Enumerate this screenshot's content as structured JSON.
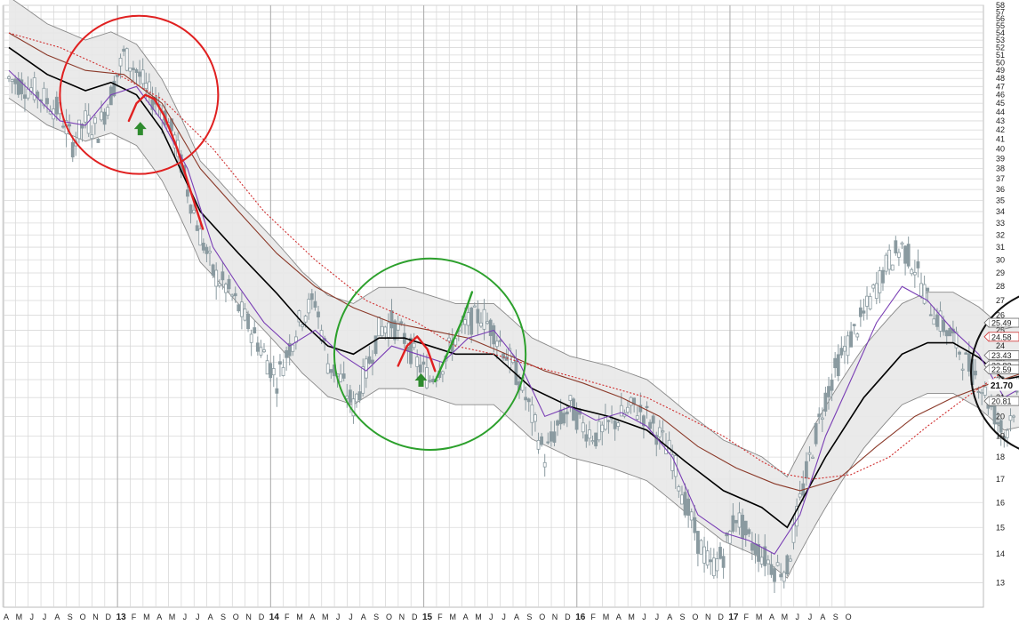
{
  "chart_data": {
    "type": "candlestick",
    "title": "",
    "xlabel": "",
    "ylabel": "",
    "ylim": [
      12.2,
      58
    ],
    "yscale": "log",
    "grid": true,
    "y_ticks": [
      13,
      14,
      15,
      16,
      17,
      18,
      19,
      20,
      21,
      22,
      23,
      24,
      25,
      26,
      27,
      28,
      29,
      30,
      31,
      32,
      33,
      34,
      35,
      36,
      37,
      38,
      39,
      40,
      41,
      42,
      43,
      44,
      45,
      46,
      47,
      48,
      49,
      50,
      51,
      52,
      53,
      54,
      55,
      56,
      57,
      58
    ],
    "x_ticks": [
      {
        "label": "A"
      },
      {
        "label": "M"
      },
      {
        "label": "J"
      },
      {
        "label": "J"
      },
      {
        "label": "A"
      },
      {
        "label": "S"
      },
      {
        "label": "O"
      },
      {
        "label": "N"
      },
      {
        "label": "D"
      },
      {
        "label": "13",
        "year": true
      },
      {
        "label": "F"
      },
      {
        "label": "M"
      },
      {
        "label": "A"
      },
      {
        "label": "M"
      },
      {
        "label": "J"
      },
      {
        "label": "J"
      },
      {
        "label": "A"
      },
      {
        "label": "S"
      },
      {
        "label": "O"
      },
      {
        "label": "N"
      },
      {
        "label": "D"
      },
      {
        "label": "14",
        "year": true
      },
      {
        "label": "F"
      },
      {
        "label": "M"
      },
      {
        "label": "A"
      },
      {
        "label": "M"
      },
      {
        "label": "J"
      },
      {
        "label": "J"
      },
      {
        "label": "A"
      },
      {
        "label": "S"
      },
      {
        "label": "O"
      },
      {
        "label": "N"
      },
      {
        "label": "D"
      },
      {
        "label": "15",
        "year": true
      },
      {
        "label": "F"
      },
      {
        "label": "M"
      },
      {
        "label": "A"
      },
      {
        "label": "M"
      },
      {
        "label": "J"
      },
      {
        "label": "J"
      },
      {
        "label": "A"
      },
      {
        "label": "S"
      },
      {
        "label": "O"
      },
      {
        "label": "N"
      },
      {
        "label": "D"
      },
      {
        "label": "16",
        "year": true
      },
      {
        "label": "F"
      },
      {
        "label": "M"
      },
      {
        "label": "A"
      },
      {
        "label": "M"
      },
      {
        "label": "J"
      },
      {
        "label": "J"
      },
      {
        "label": "A"
      },
      {
        "label": "S"
      },
      {
        "label": "O"
      },
      {
        "label": "N"
      },
      {
        "label": "D"
      },
      {
        "label": "17",
        "year": true
      },
      {
        "label": "F"
      },
      {
        "label": "M"
      },
      {
        "label": "A"
      },
      {
        "label": "M"
      },
      {
        "label": "J"
      },
      {
        "label": "J"
      },
      {
        "label": "A"
      },
      {
        "label": "S"
      },
      {
        "label": "O"
      }
    ],
    "price_path": [
      [
        0,
        48
      ],
      [
        2,
        46.5
      ],
      [
        4,
        44
      ],
      [
        5,
        40.5
      ],
      [
        6,
        43
      ],
      [
        7,
        42
      ],
      [
        8,
        46
      ],
      [
        9,
        51
      ],
      [
        10,
        49
      ],
      [
        11,
        46
      ],
      [
        12,
        44.5
      ],
      [
        13,
        41
      ],
      [
        14,
        36
      ],
      [
        15,
        32
      ],
      [
        16,
        29
      ],
      [
        17,
        28
      ],
      [
        18,
        26.5
      ],
      [
        19,
        25
      ],
      [
        20,
        23.5
      ],
      [
        21,
        22
      ],
      [
        22,
        24
      ],
      [
        23,
        26
      ],
      [
        24,
        27
      ],
      [
        25,
        23
      ],
      [
        26,
        22
      ],
      [
        27,
        20.5
      ],
      [
        28,
        22.5
      ],
      [
        29,
        25
      ],
      [
        30,
        25.5
      ],
      [
        31,
        24.5
      ],
      [
        32,
        23
      ],
      [
        33,
        22
      ],
      [
        34,
        23
      ],
      [
        35,
        24.5
      ],
      [
        36,
        25.5
      ],
      [
        37,
        26
      ],
      [
        38,
        25
      ],
      [
        39,
        23.5
      ],
      [
        40,
        22
      ],
      [
        41,
        20
      ],
      [
        42,
        18
      ],
      [
        43,
        19.5
      ],
      [
        44,
        20.5
      ],
      [
        45,
        19.5
      ],
      [
        46,
        19
      ],
      [
        47,
        19.5
      ],
      [
        48,
        20
      ],
      [
        49,
        20.5
      ],
      [
        50,
        20
      ],
      [
        51,
        19
      ],
      [
        52,
        18
      ],
      [
        53,
        16
      ],
      [
        54,
        14.5
      ],
      [
        55,
        13.5
      ],
      [
        56,
        14
      ],
      [
        57,
        15.5
      ],
      [
        58,
        14.5
      ],
      [
        59,
        14
      ],
      [
        60,
        13.5
      ],
      [
        61,
        13.5
      ],
      [
        62,
        16
      ],
      [
        63,
        18.5
      ],
      [
        64,
        21
      ],
      [
        65,
        23
      ],
      [
        66,
        24.5
      ],
      [
        67,
        26
      ],
      [
        68,
        28
      ],
      [
        69,
        30
      ],
      [
        70,
        31
      ],
      [
        71,
        29.5
      ],
      [
        72,
        27
      ],
      [
        73,
        25.5
      ],
      [
        74,
        24.5
      ],
      [
        75,
        23
      ],
      [
        76,
        22
      ],
      [
        77,
        20.5
      ],
      [
        78,
        19
      ],
      [
        79,
        21
      ],
      [
        80,
        23
      ],
      [
        81,
        23.5
      ],
      [
        82,
        24.5
      ],
      [
        83,
        22
      ],
      [
        84,
        21.7
      ]
    ],
    "moving_averages": [
      {
        "color": "#000000",
        "values": [
          [
            0,
            52
          ],
          [
            3,
            48.5
          ],
          [
            6,
            46.5
          ],
          [
            8,
            47.5
          ],
          [
            10,
            46
          ],
          [
            12,
            42
          ],
          [
            15,
            34
          ],
          [
            18,
            30.5
          ],
          [
            21,
            27.5
          ],
          [
            23,
            25.5
          ],
          [
            25,
            24
          ],
          [
            27,
            23.5
          ],
          [
            29,
            24.5
          ],
          [
            31,
            24.5
          ],
          [
            33,
            24
          ],
          [
            35,
            23.5
          ],
          [
            38,
            23.5
          ],
          [
            41,
            21.5
          ],
          [
            44,
            20.5
          ],
          [
            47,
            20
          ],
          [
            50,
            19.3
          ],
          [
            53,
            17.8
          ],
          [
            56,
            16.5
          ],
          [
            59,
            15.8
          ],
          [
            61,
            15
          ],
          [
            64,
            18
          ],
          [
            67,
            21
          ],
          [
            70,
            23.5
          ],
          [
            72,
            24.2
          ],
          [
            74,
            24.2
          ],
          [
            76,
            23.3
          ],
          [
            78,
            22
          ],
          [
            80,
            22.3
          ],
          [
            82,
            23
          ],
          [
            84,
            22.6
          ]
        ]
      },
      {
        "color": "#8b3a2a",
        "values": [
          [
            0,
            54
          ],
          [
            3,
            51
          ],
          [
            6,
            49
          ],
          [
            9,
            48.5
          ],
          [
            12,
            45
          ],
          [
            15,
            38
          ],
          [
            18,
            34
          ],
          [
            21,
            30.5
          ],
          [
            24,
            28
          ],
          [
            27,
            26.5
          ],
          [
            30,
            25.5
          ],
          [
            33,
            25
          ],
          [
            36,
            24.5
          ],
          [
            39,
            23.5
          ],
          [
            42,
            22.5
          ],
          [
            45,
            21.8
          ],
          [
            48,
            21
          ],
          [
            51,
            20
          ],
          [
            54,
            18.5
          ],
          [
            57,
            17.5
          ],
          [
            60,
            16.8
          ],
          [
            62,
            16.5
          ],
          [
            65,
            17
          ],
          [
            68,
            18.5
          ],
          [
            71,
            20
          ],
          [
            74,
            21
          ],
          [
            77,
            21.8
          ],
          [
            80,
            22.5
          ],
          [
            82,
            22.8
          ],
          [
            84,
            23
          ]
        ]
      },
      {
        "color": "#d03030",
        "dashed": true,
        "values": [
          [
            0,
            54
          ],
          [
            4,
            52
          ],
          [
            8,
            49
          ],
          [
            12,
            45.5
          ],
          [
            16,
            40
          ],
          [
            20,
            34
          ],
          [
            24,
            30
          ],
          [
            28,
            27
          ],
          [
            32,
            25.5
          ],
          [
            35,
            24
          ],
          [
            38,
            23.5
          ],
          [
            41,
            22.8
          ],
          [
            44,
            22.2
          ],
          [
            47,
            21.6
          ],
          [
            50,
            21
          ],
          [
            53,
            20
          ],
          [
            56,
            19
          ],
          [
            59,
            17.8
          ],
          [
            61,
            17.2
          ],
          [
            63,
            17
          ],
          [
            66,
            17.2
          ],
          [
            69,
            18
          ],
          [
            72,
            19.5
          ],
          [
            75,
            21
          ],
          [
            78,
            22.5
          ],
          [
            81,
            23.5
          ],
          [
            84,
            24.5
          ]
        ]
      },
      {
        "color": "#7a3fb5",
        "values": [
          [
            0,
            49
          ],
          [
            2,
            46
          ],
          [
            4,
            43
          ],
          [
            6,
            42.5
          ],
          [
            8,
            46
          ],
          [
            10,
            47
          ],
          [
            12,
            43
          ],
          [
            14,
            38
          ],
          [
            16,
            31
          ],
          [
            18,
            28
          ],
          [
            20,
            25.5
          ],
          [
            22,
            24
          ],
          [
            24,
            25
          ],
          [
            26,
            23.5
          ],
          [
            28,
            22.5
          ],
          [
            30,
            24
          ],
          [
            32,
            23.5
          ],
          [
            34,
            23
          ],
          [
            36,
            24.5
          ],
          [
            38,
            25
          ],
          [
            40,
            23
          ],
          [
            42,
            20
          ],
          [
            44,
            20.5
          ],
          [
            46,
            19.8
          ],
          [
            48,
            20.2
          ],
          [
            50,
            19.5
          ],
          [
            52,
            18
          ],
          [
            54,
            15.5
          ],
          [
            56,
            14.8
          ],
          [
            58,
            14.5
          ],
          [
            60,
            14
          ],
          [
            62,
            15.5
          ],
          [
            64,
            19
          ],
          [
            66,
            22
          ],
          [
            68,
            25.5
          ],
          [
            70,
            28
          ],
          [
            72,
            27
          ],
          [
            74,
            25
          ],
          [
            76,
            23.5
          ],
          [
            78,
            21
          ],
          [
            80,
            21.8
          ],
          [
            82,
            23
          ],
          [
            84,
            22.8
          ]
        ]
      }
    ],
    "price_tags": [
      {
        "value": 25.49,
        "label": "25.49"
      },
      {
        "value": 24.58,
        "label": "24.58",
        "accent": "#d03030"
      },
      {
        "value": 23.43,
        "label": "23.43"
      },
      {
        "value": 22.83,
        "label": "22.83"
      },
      {
        "value": 22.59,
        "label": "22.59"
      },
      {
        "value": 20.81,
        "label": "20.81"
      }
    ],
    "last_price": {
      "value": 21.7,
      "label": "21.70"
    },
    "annotations": [
      {
        "shape": "circle",
        "color": "#e02020",
        "center": [
          10.2,
          46
        ],
        "radius_months": 6.2
      },
      {
        "shape": "circle",
        "color": "#2ca02c",
        "center": [
          33,
          23.5
        ],
        "radius_months": 7.5
      },
      {
        "shape": "circle",
        "color": "#111111",
        "center": [
          82,
          22.4
        ],
        "radius_months": 6.6
      },
      {
        "shape": "arrow-up",
        "color": "#2e8b2e",
        "at": [
          10.3,
          42
        ]
      },
      {
        "shape": "arrow-up",
        "color": "#2e8b2e",
        "at": [
          32.3,
          21.9
        ]
      },
      {
        "shape": "arrow-up",
        "color": "#2e8b2e",
        "at": [
          82,
          20.1
        ]
      }
    ]
  },
  "colors": {
    "grid": "#d9d9d9",
    "candle": "#8a9aa0",
    "band_fill": "#e8e8e8",
    "band_edge": "#888888",
    "red": "#e02020",
    "green": "#2ca02c",
    "yellow": "#f2e200"
  }
}
